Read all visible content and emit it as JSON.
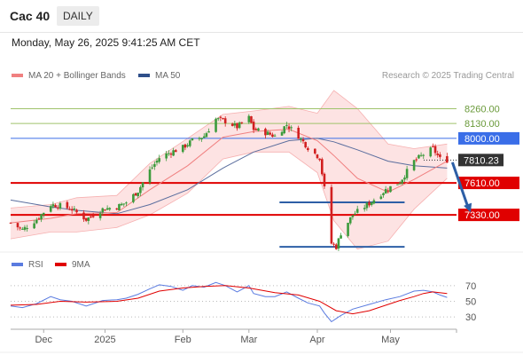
{
  "header": {
    "title": "Cac 40",
    "timeframe": "DAILY"
  },
  "datetime": "Monday, May 26, 2025 9:41:25 AM CET",
  "legend": {
    "ma20": "MA 20 + Bollinger Bands",
    "ma50": "MA 50",
    "credit": "Research © 2025 Trading Central",
    "rsi": "RSI",
    "rsi_ma": "9MA"
  },
  "colors": {
    "candle_up": "#3c9b3c",
    "candle_down": "#d22020",
    "bollinger_fill": "#fde3e3",
    "ma20": "#f08080",
    "ma50": "#5b6e9e",
    "resistance_blue": "#3a6ee8",
    "support_red": "#e00000",
    "target_green": "#9fc36b",
    "rsi_line": "#5a7be0",
    "rsi_ma": "#e00000",
    "arrow": "#2d5fa6",
    "current_price": "#333333"
  },
  "chart_data": [
    {
      "type": "candlestick",
      "x_range": [
        "2024-11-22",
        "2025-05-30"
      ],
      "y_range": [
        7020,
        8450
      ],
      "x_ticks": [
        {
          "label": "Dec",
          "date": "2024-12-06"
        },
        {
          "label": "2025",
          "date": "2025-01-01"
        },
        {
          "label": "Feb",
          "date": "2025-02-03"
        },
        {
          "label": "Mar",
          "date": "2025-03-03"
        },
        {
          "label": "Apr",
          "date": "2025-04-01"
        },
        {
          "label": "May",
          "date": "2025-05-02"
        }
      ],
      "levels": [
        {
          "label": "8260.00",
          "value": 8260,
          "kind": "target"
        },
        {
          "label": "8130.00",
          "value": 8130,
          "kind": "target"
        },
        {
          "label": "8000.00",
          "value": 8000,
          "kind": "resistance"
        },
        {
          "label": "7810.23",
          "value": 7810.23,
          "kind": "current"
        },
        {
          "label": "7610.00",
          "value": 7610,
          "kind": "pivot"
        },
        {
          "label": "7330.00",
          "value": 7330,
          "kind": "support"
        }
      ],
      "close_path": [
        [
          "2024-11-22",
          7260
        ],
        [
          "2024-11-27",
          7200
        ],
        [
          "2024-12-03",
          7290
        ],
        [
          "2024-12-09",
          7420
        ],
        [
          "2024-12-13",
          7410
        ],
        [
          "2024-12-18",
          7380
        ],
        [
          "2024-12-24",
          7290
        ],
        [
          "2024-12-31",
          7380
        ],
        [
          "2025-01-06",
          7400
        ],
        [
          "2025-01-10",
          7440
        ],
        [
          "2025-01-15",
          7540
        ],
        [
          "2025-01-20",
          7720
        ],
        [
          "2025-01-24",
          7830
        ],
        [
          "2025-01-29",
          7880
        ],
        [
          "2025-02-03",
          7920
        ],
        [
          "2025-02-07",
          7980
        ],
        [
          "2025-02-12",
          8020
        ],
        [
          "2025-02-17",
          8170
        ],
        [
          "2025-02-21",
          8150
        ],
        [
          "2025-02-26",
          8100
        ],
        [
          "2025-03-03",
          8180
        ],
        [
          "2025-03-05",
          8080
        ],
        [
          "2025-03-10",
          8050
        ],
        [
          "2025-03-14",
          8020
        ],
        [
          "2025-03-19",
          8120
        ],
        [
          "2025-03-24",
          8020
        ],
        [
          "2025-03-28",
          7920
        ],
        [
          "2025-04-02",
          7830
        ],
        [
          "2025-04-04",
          7560
        ],
        [
          "2025-04-07",
          7080
        ],
        [
          "2025-04-09",
          7050
        ],
        [
          "2025-04-11",
          7170
        ],
        [
          "2025-04-16",
          7330
        ],
        [
          "2025-04-23",
          7430
        ],
        [
          "2025-04-30",
          7550
        ],
        [
          "2025-05-06",
          7620
        ],
        [
          "2025-05-12",
          7800
        ],
        [
          "2025-05-16",
          7860
        ],
        [
          "2025-05-20",
          7910
        ],
        [
          "2025-05-23",
          7820
        ],
        [
          "2025-05-26",
          7810.23
        ]
      ],
      "bollinger_upper": [
        [
          "2024-11-22",
          7390
        ],
        [
          "2024-12-09",
          7420
        ],
        [
          "2024-12-20",
          7480
        ],
        [
          "2025-01-06",
          7500
        ],
        [
          "2025-01-20",
          7780
        ],
        [
          "2025-02-05",
          8000
        ],
        [
          "2025-02-20",
          8210
        ],
        [
          "2025-03-05",
          8240
        ],
        [
          "2025-03-20",
          8280
        ],
        [
          "2025-04-01",
          8220
        ],
        [
          "2025-04-08",
          8420
        ],
        [
          "2025-04-18",
          8260
        ],
        [
          "2025-05-01",
          7950
        ],
        [
          "2025-05-12",
          7910
        ],
        [
          "2025-05-26",
          7950
        ]
      ],
      "bollinger_lower": [
        [
          "2024-11-22",
          7120
        ],
        [
          "2024-12-09",
          7180
        ],
        [
          "2024-12-20",
          7180
        ],
        [
          "2025-01-06",
          7220
        ],
        [
          "2025-01-20",
          7330
        ],
        [
          "2025-02-05",
          7520
        ],
        [
          "2025-02-20",
          7820
        ],
        [
          "2025-03-05",
          7880
        ],
        [
          "2025-03-20",
          7880
        ],
        [
          "2025-04-01",
          7700
        ],
        [
          "2025-04-08",
          7280
        ],
        [
          "2025-04-18",
          7030
        ],
        [
          "2025-05-01",
          7100
        ],
        [
          "2025-05-12",
          7380
        ],
        [
          "2025-05-26",
          7650
        ]
      ],
      "ma20": [
        [
          "2024-11-22",
          7260
        ],
        [
          "2024-12-09",
          7300
        ],
        [
          "2024-12-20",
          7340
        ],
        [
          "2025-01-06",
          7350
        ],
        [
          "2025-01-20",
          7550
        ],
        [
          "2025-02-05",
          7760
        ],
        [
          "2025-02-20",
          8010
        ],
        [
          "2025-03-05",
          8060
        ],
        [
          "2025-03-20",
          8080
        ],
        [
          "2025-04-01",
          7980
        ],
        [
          "2025-04-08",
          7850
        ],
        [
          "2025-04-18",
          7650
        ],
        [
          "2025-05-01",
          7530
        ],
        [
          "2025-05-12",
          7640
        ],
        [
          "2025-05-26",
          7800
        ]
      ],
      "ma50": [
        [
          "2024-11-22",
          7460
        ],
        [
          "2024-12-09",
          7400
        ],
        [
          "2024-12-20",
          7370
        ],
        [
          "2025-01-06",
          7340
        ],
        [
          "2025-01-20",
          7420
        ],
        [
          "2025-02-05",
          7550
        ],
        [
          "2025-02-20",
          7740
        ],
        [
          "2025-03-05",
          7880
        ],
        [
          "2025-03-20",
          7980
        ],
        [
          "2025-04-01",
          8000
        ],
        [
          "2025-04-08",
          7970
        ],
        [
          "2025-04-18",
          7900
        ],
        [
          "2025-05-01",
          7800
        ],
        [
          "2025-05-12",
          7760
        ],
        [
          "2025-05-26",
          7740
        ]
      ],
      "range_box": {
        "start": "2025-03-31",
        "end": "2025-05-08",
        "top": 7440,
        "bottom": 7050
      },
      "forecast_arrow": {
        "from": [
          "2025-05-26",
          7790
        ],
        "to": [
          "2025-06-05",
          7350
        ]
      }
    },
    {
      "type": "line",
      "name": "RSI",
      "y_range": [
        20,
        80
      ],
      "y_ticks": [
        {
          "label": "70",
          "value": 70
        },
        {
          "label": "50",
          "value": 50
        },
        {
          "label": "30",
          "value": 30
        }
      ],
      "series": [
        {
          "name": "RSI",
          "points": [
            [
              "2024-11-22",
              44
            ],
            [
              "2024-11-27",
              42
            ],
            [
              "2024-12-03",
              47
            ],
            [
              "2024-12-09",
              56
            ],
            [
              "2024-12-13",
              52
            ],
            [
              "2024-12-18",
              50
            ],
            [
              "2024-12-24",
              44
            ],
            [
              "2024-12-31",
              51
            ],
            [
              "2025-01-06",
              52
            ],
            [
              "2025-01-10",
              54
            ],
            [
              "2025-01-15",
              59
            ],
            [
              "2025-01-20",
              66
            ],
            [
              "2025-01-24",
              71
            ],
            [
              "2025-01-29",
              69
            ],
            [
              "2025-02-03",
              64
            ],
            [
              "2025-02-07",
              70
            ],
            [
              "2025-02-12",
              68
            ],
            [
              "2025-02-17",
              74
            ],
            [
              "2025-02-21",
              70
            ],
            [
              "2025-02-26",
              62
            ],
            [
              "2025-03-03",
              70
            ],
            [
              "2025-03-05",
              60
            ],
            [
              "2025-03-10",
              56
            ],
            [
              "2025-03-14",
              56
            ],
            [
              "2025-03-19",
              62
            ],
            [
              "2025-03-24",
              54
            ],
            [
              "2025-03-28",
              48
            ],
            [
              "2025-04-02",
              44
            ],
            [
              "2025-04-04",
              35
            ],
            [
              "2025-04-07",
              24
            ],
            [
              "2025-04-09",
              28
            ],
            [
              "2025-04-11",
              32
            ],
            [
              "2025-04-16",
              40
            ],
            [
              "2025-04-23",
              46
            ],
            [
              "2025-04-30",
              52
            ],
            [
              "2025-05-06",
              56
            ],
            [
              "2025-05-12",
              63
            ],
            [
              "2025-05-16",
              64
            ],
            [
              "2025-05-20",
              62
            ],
            [
              "2025-05-23",
              58
            ],
            [
              "2025-05-26",
              55
            ]
          ]
        },
        {
          "name": "9MA",
          "points": [
            [
              "2024-11-22",
              45
            ],
            [
              "2024-12-03",
              46
            ],
            [
              "2024-12-13",
              50
            ],
            [
              "2024-12-24",
              49
            ],
            [
              "2025-01-06",
              50
            ],
            [
              "2025-01-15",
              54
            ],
            [
              "2025-01-24",
              63
            ],
            [
              "2025-02-03",
              67
            ],
            [
              "2025-02-12",
              69
            ],
            [
              "2025-02-21",
              70
            ],
            [
              "2025-03-03",
              67
            ],
            [
              "2025-03-14",
              61
            ],
            [
              "2025-03-24",
              58
            ],
            [
              "2025-04-02",
              50
            ],
            [
              "2025-04-09",
              38
            ],
            [
              "2025-04-16",
              34
            ],
            [
              "2025-04-23",
              38
            ],
            [
              "2025-04-30",
              45
            ],
            [
              "2025-05-06",
              51
            ],
            [
              "2025-05-12",
              56
            ],
            [
              "2025-05-16",
              60
            ],
            [
              "2025-05-20",
              62
            ],
            [
              "2025-05-26",
              60
            ]
          ]
        }
      ]
    }
  ]
}
